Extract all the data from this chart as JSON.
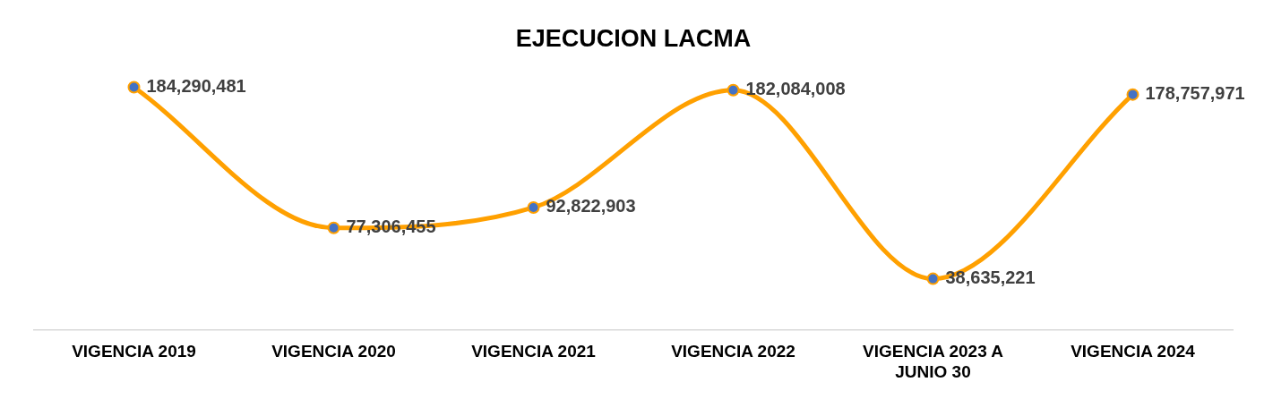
{
  "chart_data": {
    "type": "line",
    "title": "EJECUCION LACMA",
    "categories": [
      "VIGENCIA 2019",
      "VIGENCIA 2020",
      "VIGENCIA 2021",
      "VIGENCIA 2022",
      "VIGENCIA 2023 A JUNIO 30",
      "VIGENCIA 2024"
    ],
    "series": [
      {
        "color": "#ffa000",
        "values": [
          184290481,
          77306455,
          92822903,
          182084008,
          38635221,
          178757971
        ],
        "value_labels": [
          "184,290,481",
          "77,306,455",
          "92,822,903",
          "182,084,008",
          "38,635,221",
          "178,757,971"
        ]
      }
    ],
    "marker": "circle",
    "grid": false,
    "legend": false
  }
}
